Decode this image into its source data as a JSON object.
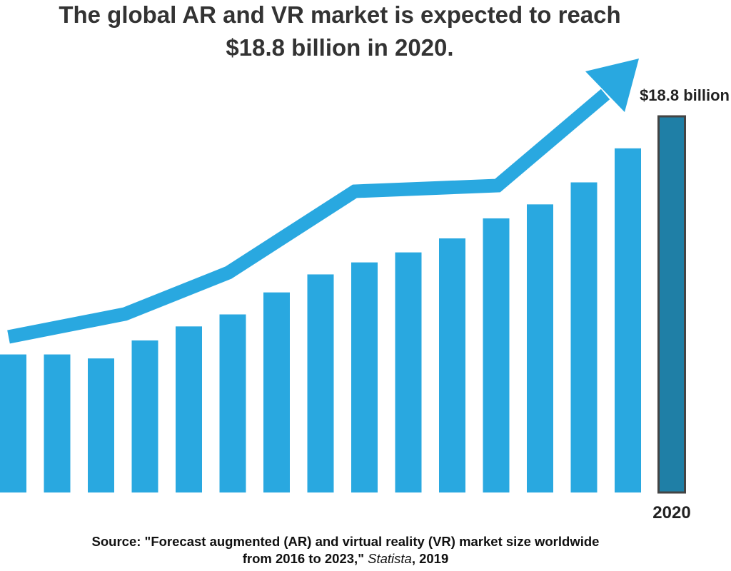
{
  "chart_data": {
    "type": "bar",
    "title": [
      "The global AR and VR market is expected to reach",
      "$18.8 billion in 2020."
    ],
    "categories": [
      null,
      null,
      null,
      null,
      null,
      null,
      null,
      null,
      null,
      null,
      null,
      null,
      null,
      null,
      null,
      "2020"
    ],
    "values": [
      6.9,
      6.9,
      6.7,
      7.6,
      8.3,
      8.9,
      10.0,
      10.9,
      11.5,
      12.0,
      12.7,
      13.7,
      14.4,
      15.5,
      17.2,
      18.8
    ],
    "value_labels": [
      null,
      null,
      null,
      null,
      null,
      null,
      null,
      null,
      null,
      null,
      null,
      null,
      null,
      null,
      null,
      "$18.8 billion"
    ],
    "colors": [
      "#29a8e0",
      "#29a8e0",
      "#29a8e0",
      "#29a8e0",
      "#29a8e0",
      "#29a8e0",
      "#29a8e0",
      "#29a8e0",
      "#29a8e0",
      "#29a8e0",
      "#29a8e0",
      "#29a8e0",
      "#29a8e0",
      "#29a8e0",
      "#29a8e0",
      "#1f7fa6"
    ],
    "ylim": [
      0,
      18.8
    ],
    "source": [
      "Source: \"Forecast augmented (AR) and virtual reality (VR) market size worldwide",
      "from 2016 to 2023,\" ",
      "Statista",
      ", 2019"
    ]
  }
}
